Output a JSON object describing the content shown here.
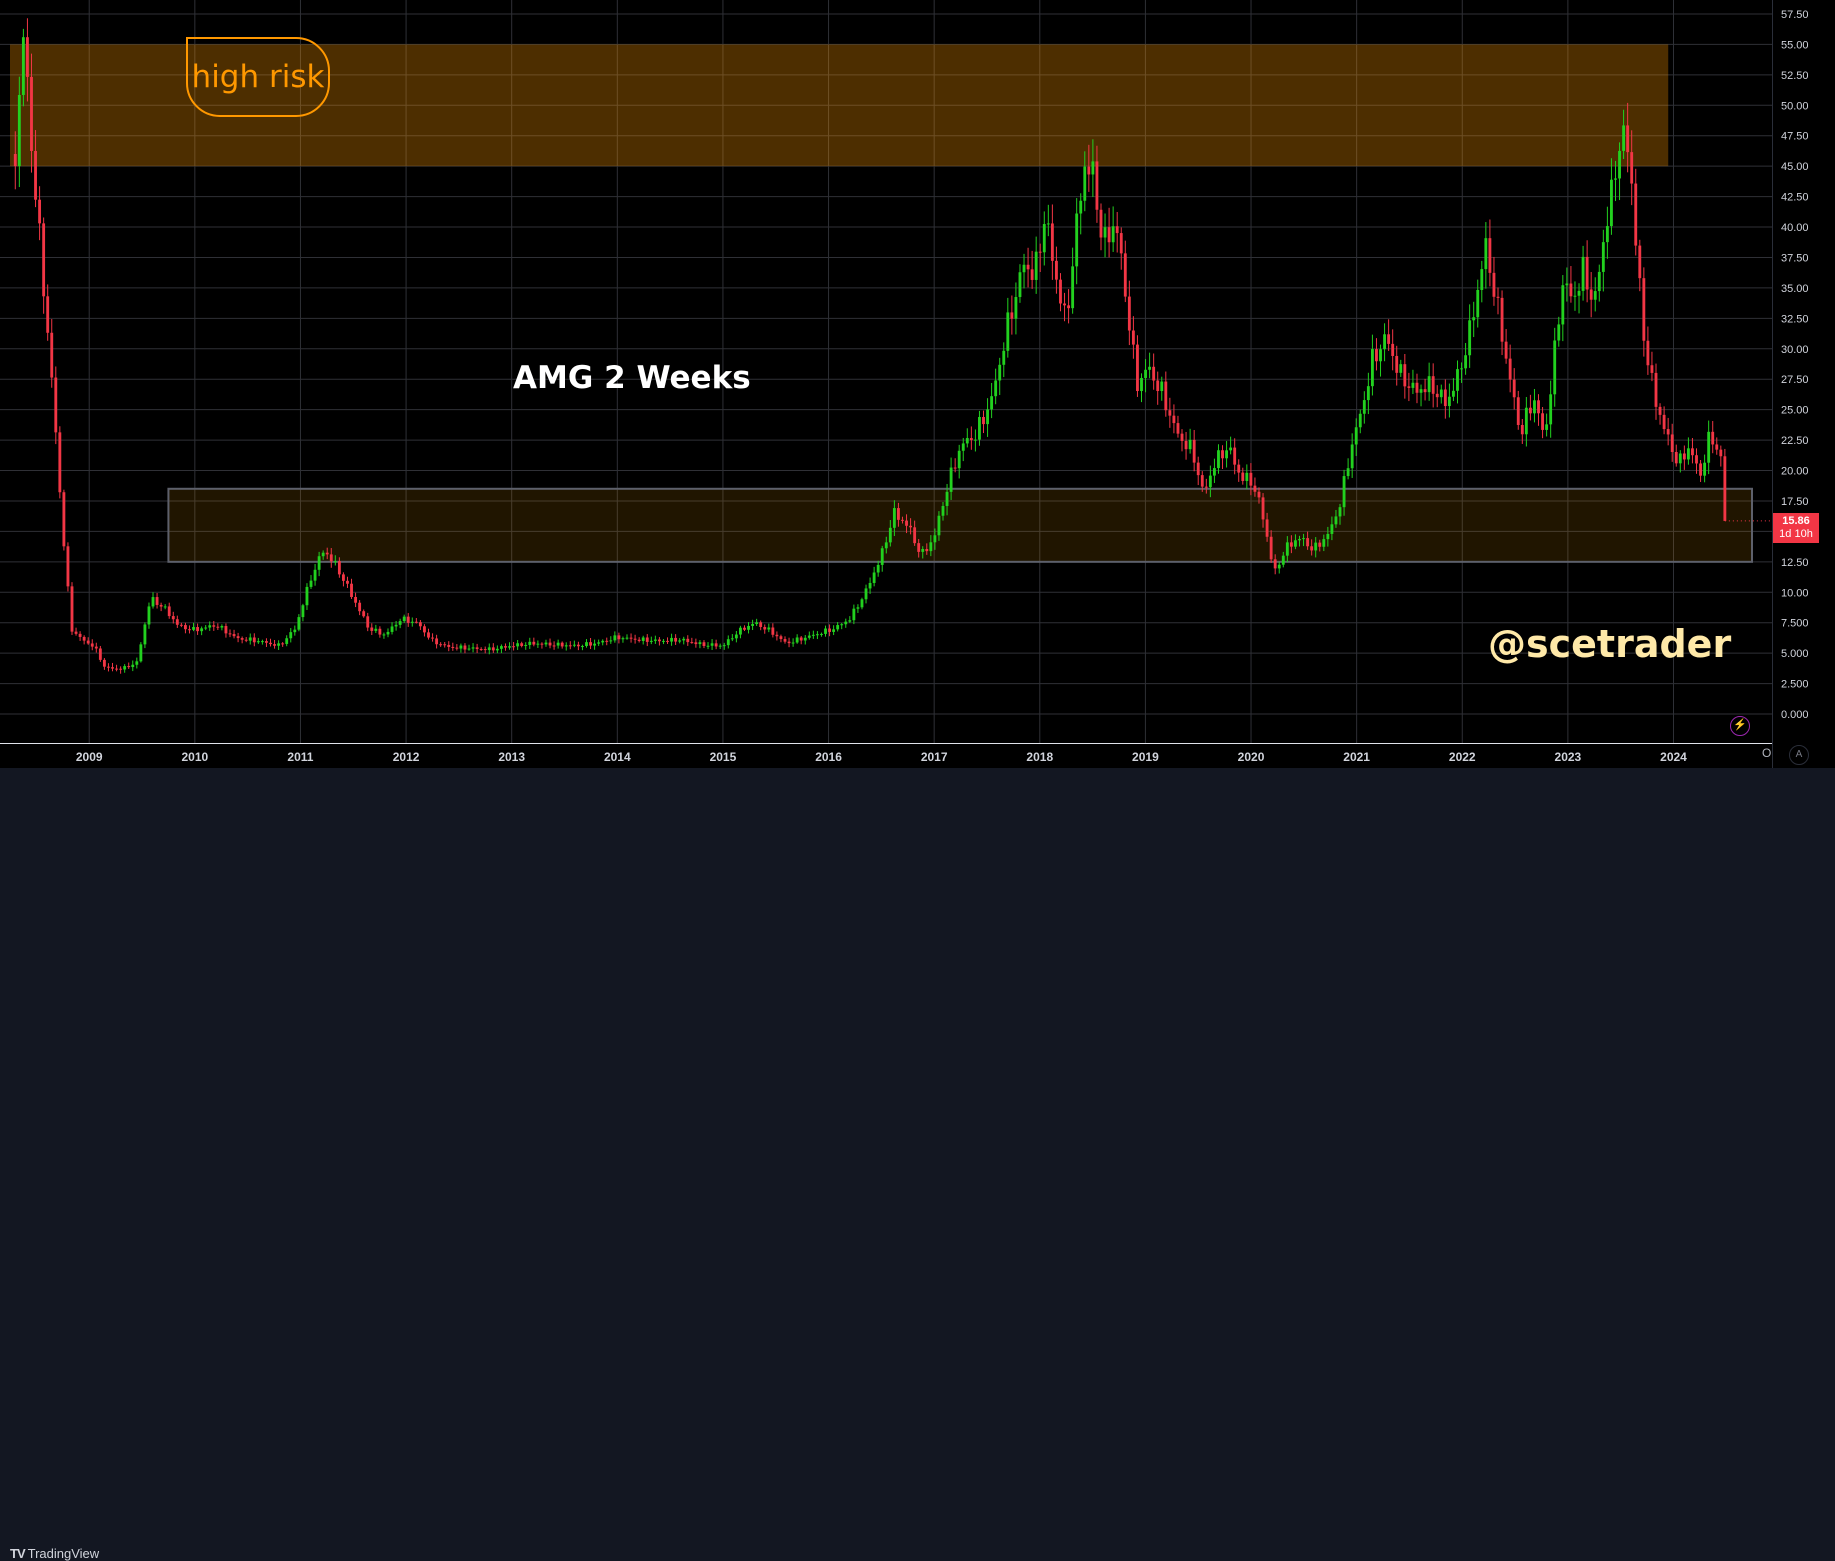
{
  "chart_data": {
    "type": "candlestick",
    "symbol": "AMG",
    "interval": "2 Weeks",
    "x_ticks": [
      "2009",
      "2010",
      "2011",
      "2012",
      "2013",
      "2014",
      "2015",
      "2016",
      "2017",
      "2018",
      "2019",
      "2020",
      "2021",
      "2022",
      "2023",
      "2024"
    ],
    "y_ticks": [
      "57.50",
      "55.00",
      "52.50",
      "50.00",
      "47.50",
      "45.00",
      "42.50",
      "40.00",
      "37.50",
      "35.00",
      "32.50",
      "30.00",
      "27.50",
      "25.00",
      "22.50",
      "20.00",
      "17.50",
      "15.00",
      "12.50",
      "10.00",
      "7.500",
      "5.000",
      "2.500",
      "0.000"
    ],
    "ylim": [
      0,
      57.5
    ],
    "xlim": [
      2008.25,
      2024.8
    ],
    "grid": true,
    "price_series": [
      [
        2008.3,
        46
      ],
      [
        2008.38,
        56
      ],
      [
        2008.46,
        46
      ],
      [
        2008.55,
        37
      ],
      [
        2008.65,
        27
      ],
      [
        2008.75,
        15
      ],
      [
        2008.83,
        7
      ],
      [
        2008.92,
        6.2
      ],
      [
        2009.05,
        5.5
      ],
      [
        2009.15,
        3.8
      ],
      [
        2009.3,
        3.7
      ],
      [
        2009.45,
        4.2
      ],
      [
        2009.58,
        9.5
      ],
      [
        2009.7,
        8.8
      ],
      [
        2009.85,
        7.2
      ],
      [
        2010.0,
        6.9
      ],
      [
        2010.2,
        7.3
      ],
      [
        2010.4,
        6.2
      ],
      [
        2010.6,
        6.0
      ],
      [
        2010.8,
        5.6
      ],
      [
        2010.95,
        7.0
      ],
      [
        2011.1,
        11.2
      ],
      [
        2011.22,
        13.5
      ],
      [
        2011.35,
        12.0
      ],
      [
        2011.5,
        9.5
      ],
      [
        2011.65,
        7.0
      ],
      [
        2011.8,
        6.5
      ],
      [
        2011.95,
        7.8
      ],
      [
        2012.1,
        7.5
      ],
      [
        2012.25,
        6.0
      ],
      [
        2012.4,
        5.5
      ],
      [
        2012.6,
        5.4
      ],
      [
        2012.8,
        5.3
      ],
      [
        2013.0,
        5.6
      ],
      [
        2013.2,
        5.8
      ],
      [
        2013.4,
        5.7
      ],
      [
        2013.6,
        5.6
      ],
      [
        2013.8,
        5.8
      ],
      [
        2014.0,
        6.3
      ],
      [
        2014.2,
        6.1
      ],
      [
        2014.4,
        6.0
      ],
      [
        2014.6,
        6.1
      ],
      [
        2014.8,
        5.7
      ],
      [
        2015.0,
        5.6
      ],
      [
        2015.15,
        6.8
      ],
      [
        2015.3,
        7.5
      ],
      [
        2015.45,
        6.8
      ],
      [
        2015.6,
        5.8
      ],
      [
        2015.75,
        6.2
      ],
      [
        2015.9,
        6.6
      ],
      [
        2016.05,
        7.0
      ],
      [
        2016.2,
        7.8
      ],
      [
        2016.35,
        10.0
      ],
      [
        2016.5,
        13.0
      ],
      [
        2016.62,
        16.5
      ],
      [
        2016.75,
        15.5
      ],
      [
        2016.88,
        13.0
      ],
      [
        2017.0,
        14.5
      ],
      [
        2017.12,
        18.5
      ],
      [
        2017.25,
        22.0
      ],
      [
        2017.4,
        23.0
      ],
      [
        2017.55,
        26.0
      ],
      [
        2017.7,
        32.0
      ],
      [
        2017.85,
        37.0
      ],
      [
        2017.95,
        36.0
      ],
      [
        2018.05,
        41.0
      ],
      [
        2018.15,
        36.0
      ],
      [
        2018.25,
        32.0
      ],
      [
        2018.32,
        38.0
      ],
      [
        2018.42,
        45.0
      ],
      [
        2018.5,
        44.5
      ],
      [
        2018.6,
        38.5
      ],
      [
        2018.72,
        40.5
      ],
      [
        2018.82,
        34.0
      ],
      [
        2018.92,
        27.0
      ],
      [
        2019.02,
        28.5
      ],
      [
        2019.15,
        26.5
      ],
      [
        2019.3,
        23.0
      ],
      [
        2019.45,
        21.5
      ],
      [
        2019.55,
        18.0
      ],
      [
        2019.65,
        20.5
      ],
      [
        2019.78,
        22.0
      ],
      [
        2019.9,
        19.5
      ],
      [
        2020.02,
        19.0
      ],
      [
        2020.12,
        16.0
      ],
      [
        2020.22,
        11.5
      ],
      [
        2020.32,
        13.5
      ],
      [
        2020.45,
        14.5
      ],
      [
        2020.6,
        13.5
      ],
      [
        2020.75,
        15.0
      ],
      [
        2020.85,
        17.5
      ],
      [
        2020.95,
        22.0
      ],
      [
        2021.05,
        25.0
      ],
      [
        2021.15,
        29.0
      ],
      [
        2021.28,
        31.0
      ],
      [
        2021.4,
        28.0
      ],
      [
        2021.55,
        26.5
      ],
      [
        2021.7,
        27.0
      ],
      [
        2021.85,
        25.5
      ],
      [
        2021.95,
        27.5
      ],
      [
        2022.05,
        30.5
      ],
      [
        2022.15,
        35.0
      ],
      [
        2022.22,
        38.5
      ],
      [
        2022.32,
        34.0
      ],
      [
        2022.42,
        29.0
      ],
      [
        2022.55,
        23.0
      ],
      [
        2022.68,
        26.0
      ],
      [
        2022.78,
        22.5
      ],
      [
        2022.88,
        30.0
      ],
      [
        2022.95,
        35.5
      ],
      [
        2023.05,
        34.0
      ],
      [
        2023.15,
        36.5
      ],
      [
        2023.25,
        33.5
      ],
      [
        2023.32,
        38.0
      ],
      [
        2023.42,
        43.0
      ],
      [
        2023.5,
        47.5
      ],
      [
        2023.58,
        46.5
      ],
      [
        2023.65,
        38.0
      ],
      [
        2023.72,
        31.0
      ],
      [
        2023.82,
        26.0
      ],
      [
        2023.95,
        22.5
      ],
      [
        2024.05,
        20.5
      ],
      [
        2024.15,
        22.0
      ],
      [
        2024.25,
        19.5
      ],
      [
        2024.35,
        23.0
      ],
      [
        2024.45,
        21.0
      ],
      [
        2024.52,
        15.86
      ]
    ],
    "zones": [
      {
        "label": "high risk",
        "y_from": 45.0,
        "y_to": 55.0,
        "x_from": 2008.25,
        "x_to": 2023.95
      },
      {
        "label": "",
        "y_from": 12.5,
        "y_to": 18.5,
        "x_from": 2009.75,
        "x_to": 2024.85
      }
    ],
    "last_price": "15.86",
    "countdown": "1d 10h",
    "colors": {
      "up": "#22d11f",
      "down": "#f23645",
      "zone_high": "#ff9800",
      "zone_low": "#d98a00",
      "bg": "#000000",
      "grid": "#2f3036",
      "badge": "#f23645"
    }
  },
  "annotations": {
    "title": "AMG 2 Weeks",
    "watermark": "@scetrader",
    "high_risk_label": "high risk"
  },
  "axis": {
    "clipped_label": "O",
    "auto_button": "A"
  },
  "footer": {
    "brand_mark": "TV",
    "brand_name": "TradingView"
  }
}
